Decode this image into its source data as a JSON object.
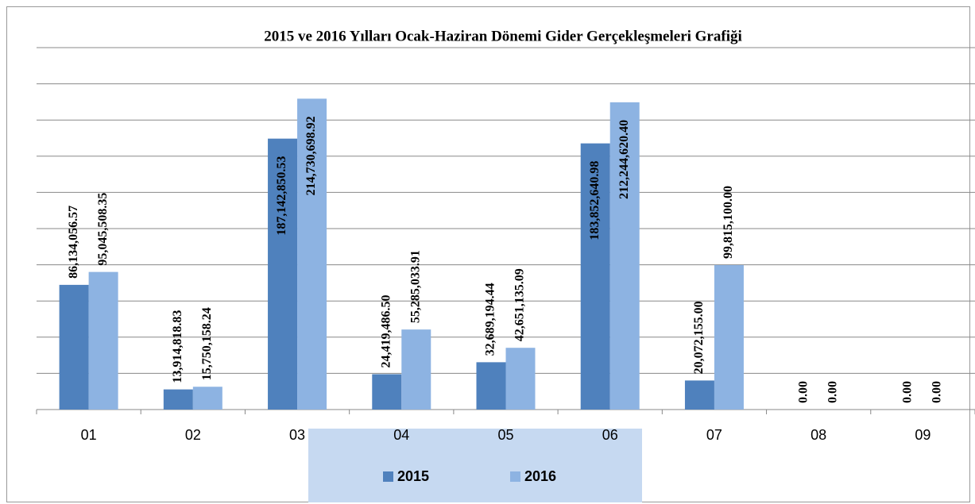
{
  "chart_data": {
    "type": "bar",
    "title": "2015 ve 2016 Yılları Ocak-Haziran Dönemi Gider Gerçekleşmeleri Grafiği",
    "categories": [
      "01",
      "02",
      "03",
      "04",
      "05",
      "06",
      "07",
      "08",
      "09"
    ],
    "series": [
      {
        "name": "2015",
        "color": "#4f81bd",
        "values": [
          86134056.57,
          13914818.83,
          187142850.53,
          24419486.5,
          32689194.44,
          183852640.98,
          20072155.0,
          0,
          0
        ],
        "value_labels": [
          "86,134,056.57",
          "13,914,818.83",
          "187,142,850.53",
          "24,419,486.50",
          "32,689,194.44",
          "183,852,640.98",
          "20,072,155.00",
          "0.00",
          "0.00"
        ]
      },
      {
        "name": "2016",
        "color": "#8db3e2",
        "values": [
          95045508.35,
          15750158.24,
          214730698.92,
          55285033.91,
          42651135.09,
          212244620.4,
          99815100.0,
          0,
          0
        ],
        "value_labels": [
          "95,045,508.35",
          "15,750,158.24",
          "214,730,698.92",
          "55,285,033.91",
          "42,651,135.09",
          "212,244,620.40",
          "99,815,100.00",
          "0.00",
          "0.00"
        ]
      }
    ],
    "ylim": [
      0,
      250000000
    ],
    "yticks": [
      0,
      25000000,
      50000000,
      75000000,
      100000000,
      125000000,
      150000000,
      175000000,
      200000000,
      225000000,
      250000000
    ],
    "grid": true,
    "legend": "bottom"
  }
}
